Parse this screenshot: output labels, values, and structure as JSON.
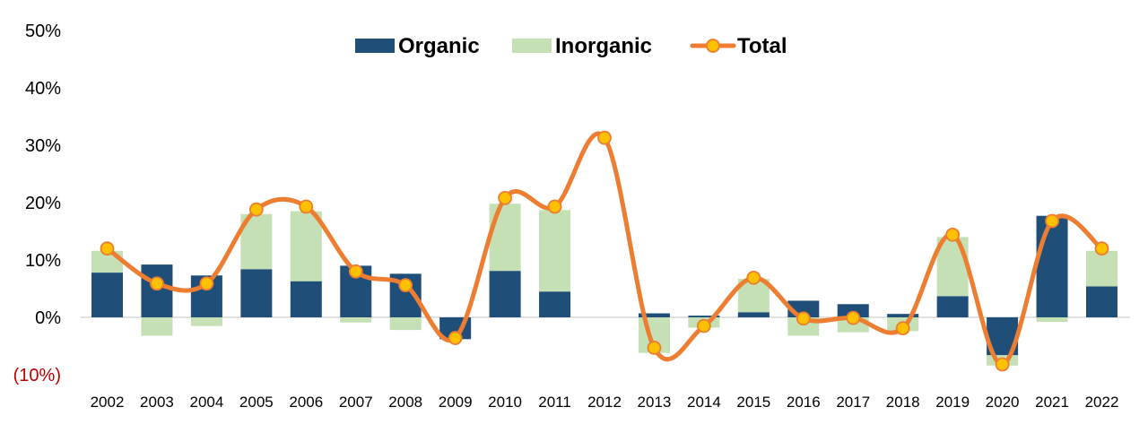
{
  "chart_data": {
    "type": "bar",
    "categories": [
      "2002",
      "2003",
      "2004",
      "2005",
      "2006",
      "2007",
      "2008",
      "2009",
      "2010",
      "2011",
      "2012",
      "2013",
      "2014",
      "2015",
      "2016",
      "2017",
      "2018",
      "2019",
      "2020",
      "2021",
      "2022"
    ],
    "series": [
      {
        "name": "Organic",
        "kind": "bar",
        "color": "#1f4e79",
        "values": [
          7.8,
          9.2,
          7.3,
          8.4,
          6.3,
          9.0,
          7.6,
          -3.8,
          8.1,
          4.5,
          0,
          0.7,
          0.3,
          0.9,
          2.9,
          2.3,
          0.6,
          3.7,
          -6.6,
          17.7,
          5.4
        ]
      },
      {
        "name": "Inorganic",
        "kind": "stacked-bar",
        "color": "#c5e0b4",
        "values": [
          3.8,
          -3.2,
          -1.5,
          9.6,
          12.2,
          -0.9,
          -2.2,
          0,
          11.7,
          14.2,
          0,
          -6.2,
          -1.8,
          5.8,
          -3.2,
          -2.6,
          -2.4,
          10.3,
          -1.8,
          -0.8,
          6.2
        ]
      },
      {
        "name": "Total",
        "kind": "line",
        "color": "#ed7d31",
        "marker_color": "#ffc000",
        "values": [
          12.0,
          5.9,
          5.9,
          18.8,
          19.3,
          8.0,
          5.6,
          -3.6,
          20.8,
          19.3,
          31.3,
          -5.3,
          -1.5,
          6.9,
          -0.2,
          -0.1,
          -1.9,
          14.4,
          -8.2,
          16.8,
          12.0
        ]
      }
    ],
    "y_ticks": [
      "(10%)",
      "0%",
      "10%",
      "20%",
      "30%",
      "40%",
      "50%"
    ],
    "ylim": [
      -10,
      50
    ],
    "legend_position": "top-center",
    "grid": false
  }
}
